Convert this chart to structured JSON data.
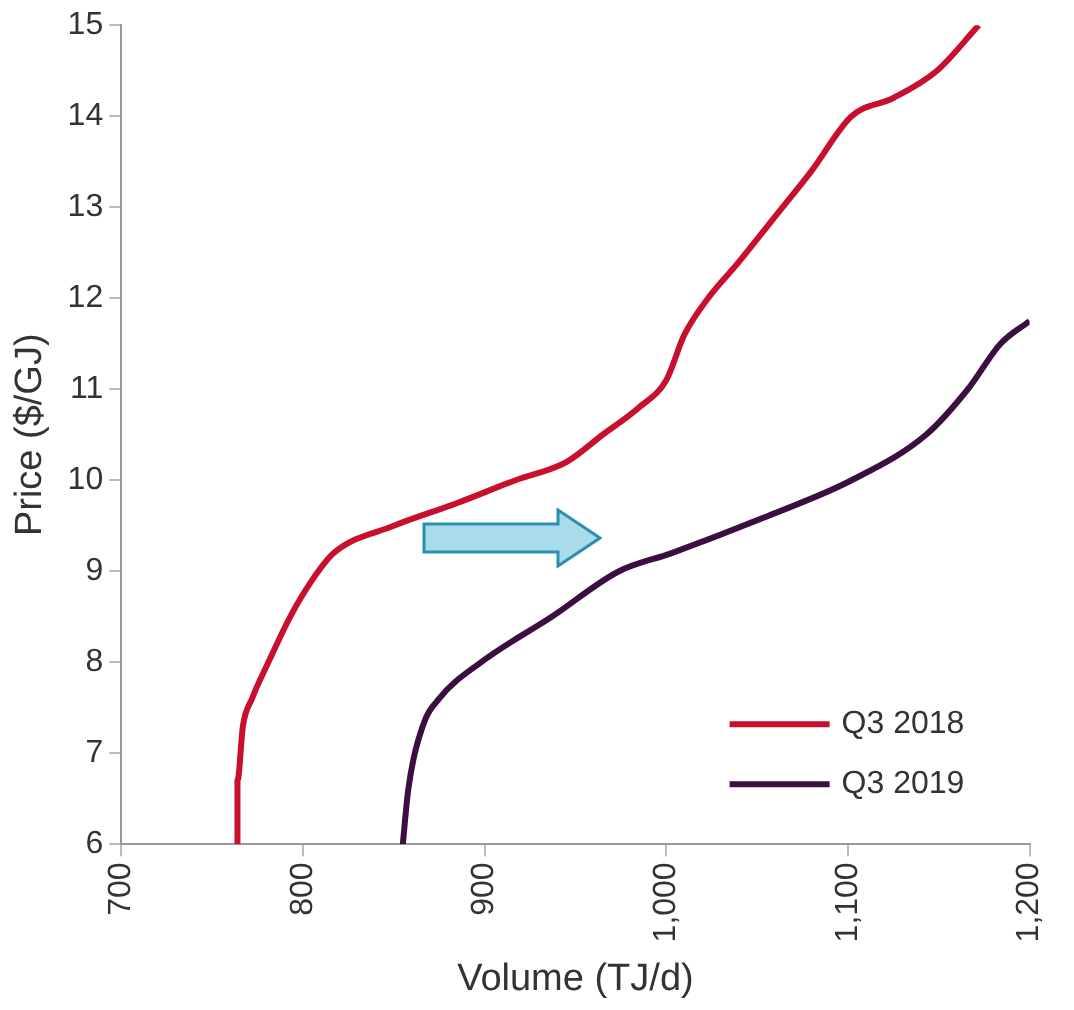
{
  "chart_data": {
    "type": "line",
    "xlabel": "Volume (TJ/d)",
    "ylabel": "Price ($/GJ)",
    "xlim": [
      700,
      1200
    ],
    "xticks": [
      700,
      800,
      900,
      {
        "value": 1000,
        "label": "1,000"
      },
      {
        "value": 1100,
        "label": "1,100"
      },
      {
        "value": 1200,
        "label": "1,200"
      }
    ],
    "ylim": [
      6,
      15
    ],
    "yticks": [
      6,
      7,
      8,
      9,
      10,
      11,
      12,
      13,
      14,
      15
    ],
    "grid": false,
    "legend": "bottom right",
    "marker": "none",
    "line_style": "solid",
    "series": [
      {
        "name": "Q3 2018",
        "color": "#c8102e",
        "x": [
          764,
          764,
          767,
          772,
          781,
          793,
          805,
          817,
          850,
          885,
          917,
          945,
          965,
          985,
          1000,
          1010,
          1023,
          1040,
          1060,
          1080,
          1102,
          1125,
          1149,
          1172
        ],
        "values": [
          6,
          6.7,
          7.3,
          7.6,
          8,
          8.5,
          8.9,
          9.2,
          9.5,
          9.75,
          10,
          10.2,
          10.5,
          10.8,
          11.1,
          11.6,
          12,
          12.4,
          12.9,
          13.4,
          14,
          14.2,
          14.5,
          15
        ]
      },
      {
        "name": "Q3 2019",
        "color": "#3b0f3f",
        "x": [
          855,
          858,
          866,
          875,
          898,
          937,
          974,
          1003,
          1055,
          1102,
          1143,
          1166,
          1184,
          1200
        ],
        "values": [
          6,
          6.6,
          7.3,
          7.6,
          8,
          8.5,
          9,
          9.2,
          9.6,
          10,
          10.5,
          11,
          11.5,
          11.75
        ]
      }
    ]
  }
}
